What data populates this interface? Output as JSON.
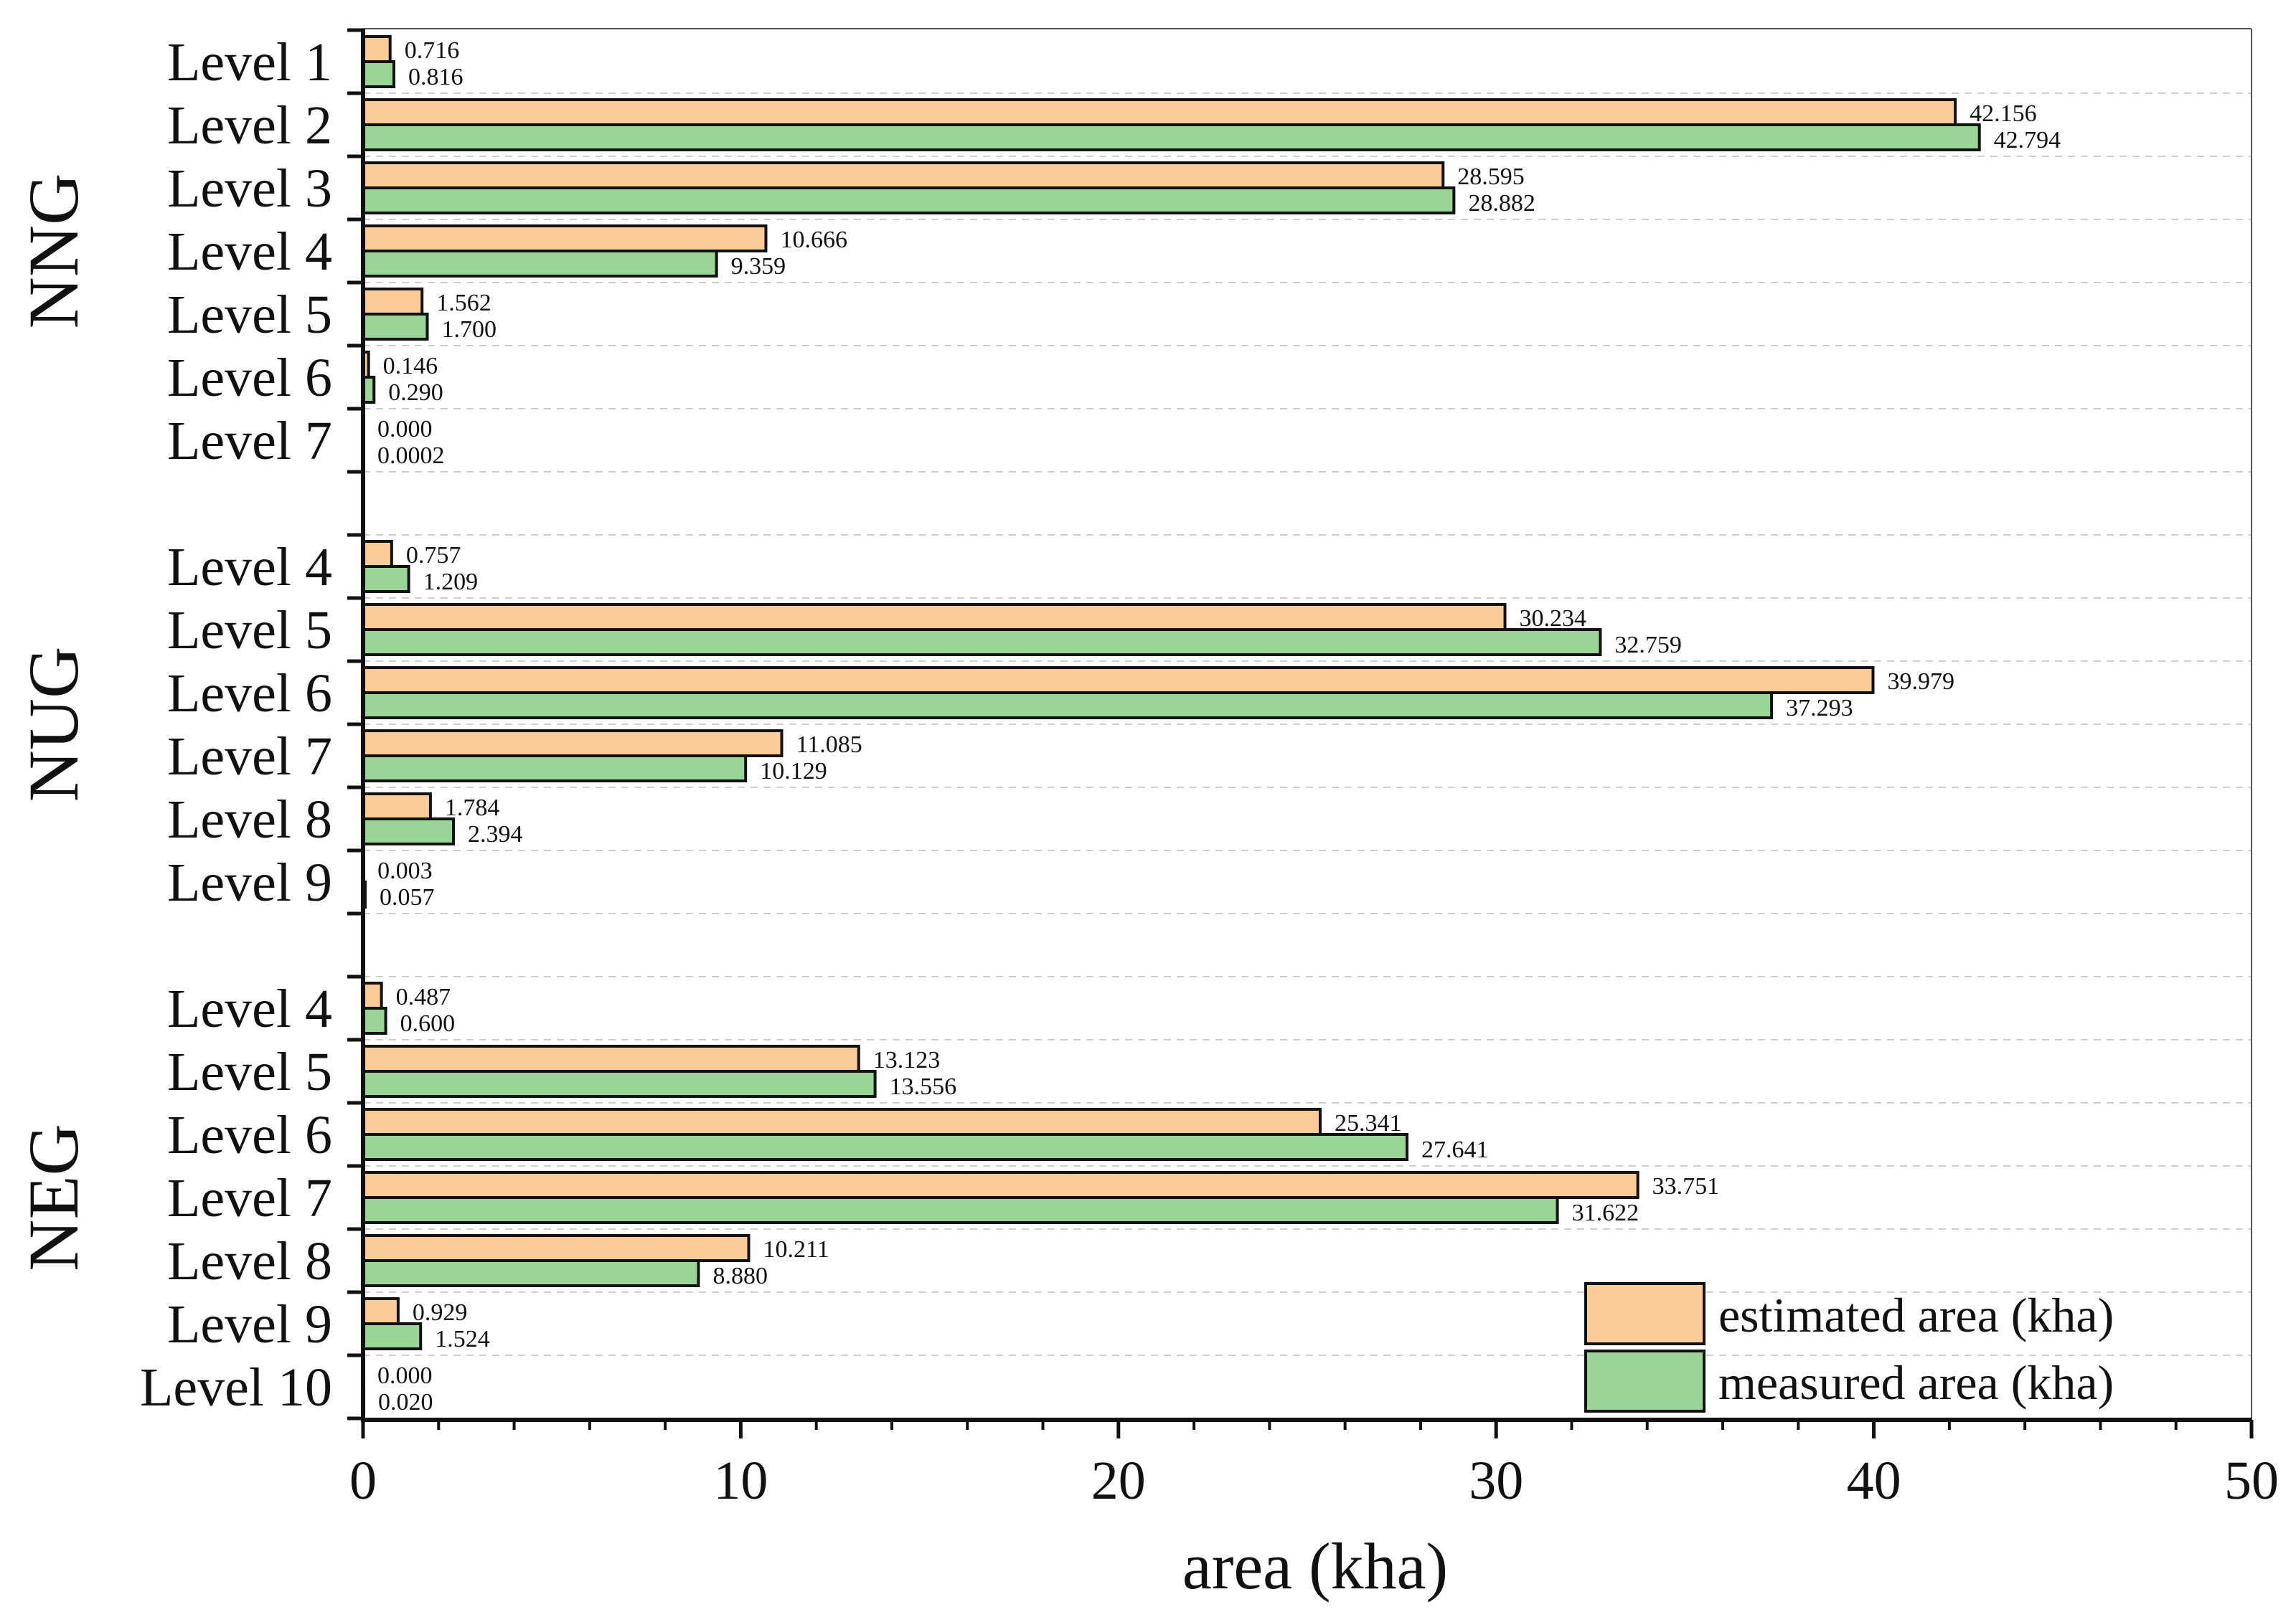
{
  "chart_data": {
    "type": "bar",
    "orientation": "horizontal",
    "xlabel": "area (kha)",
    "xlim": [
      0,
      50
    ],
    "xticks": [
      0,
      10,
      20,
      30,
      40,
      50
    ],
    "grid": "horizontal-dashed",
    "legend_position": "bottom-right",
    "series": [
      {
        "name": "estimated area (kha)",
        "color": "#FCCC98"
      },
      {
        "name": "measured area (kha)",
        "color": "#98D596"
      }
    ],
    "groups": [
      {
        "name": "NNG",
        "rows": [
          {
            "label": "Level 1",
            "estimated": 0.716,
            "estimated_text": "0.716",
            "measured": 0.816,
            "measured_text": "0.816"
          },
          {
            "label": "Level 2",
            "estimated": 42.156,
            "estimated_text": "42.156",
            "measured": 42.794,
            "measured_text": "42.794"
          },
          {
            "label": "Level 3",
            "estimated": 28.595,
            "estimated_text": "28.595",
            "measured": 28.882,
            "measured_text": "28.882"
          },
          {
            "label": "Level 4",
            "estimated": 10.666,
            "estimated_text": "10.666",
            "measured": 9.359,
            "measured_text": "9.359"
          },
          {
            "label": "Level 5",
            "estimated": 1.562,
            "estimated_text": "1.562",
            "measured": 1.7,
            "measured_text": "1.700"
          },
          {
            "label": "Level 6",
            "estimated": 0.146,
            "estimated_text": "0.146",
            "measured": 0.29,
            "measured_text": "0.290"
          },
          {
            "label": "Level 7",
            "estimated": 0.0,
            "estimated_text": "0.000",
            "measured": 0.0002,
            "measured_text": "0.0002"
          }
        ]
      },
      {
        "name": "NUG",
        "rows": [
          {
            "label": "Level 4",
            "estimated": 0.757,
            "estimated_text": "0.757",
            "measured": 1.209,
            "measured_text": "1.209"
          },
          {
            "label": "Level 5",
            "estimated": 30.234,
            "estimated_text": "30.234",
            "measured": 32.759,
            "measured_text": "32.759"
          },
          {
            "label": "Level 6",
            "estimated": 39.979,
            "estimated_text": "39.979",
            "measured": 37.293,
            "measured_text": "37.293"
          },
          {
            "label": "Level 7",
            "estimated": 11.085,
            "estimated_text": "11.085",
            "measured": 10.129,
            "measured_text": "10.129"
          },
          {
            "label": "Level 8",
            "estimated": 1.784,
            "estimated_text": "1.784",
            "measured": 2.394,
            "measured_text": "2.394"
          },
          {
            "label": "Level 9",
            "estimated": 0.003,
            "estimated_text": "0.003",
            "measured": 0.057,
            "measured_text": "0.057"
          }
        ]
      },
      {
        "name": "NEG",
        "rows": [
          {
            "label": "Level 4",
            "estimated": 0.487,
            "estimated_text": "0.487",
            "measured": 0.6,
            "measured_text": "0.600"
          },
          {
            "label": "Level 5",
            "estimated": 13.123,
            "estimated_text": "13.123",
            "measured": 13.556,
            "measured_text": "13.556"
          },
          {
            "label": "Level 6",
            "estimated": 25.341,
            "estimated_text": "25.341",
            "measured": 27.641,
            "measured_text": "27.641"
          },
          {
            "label": "Level 7",
            "estimated": 33.751,
            "estimated_text": "33.751",
            "measured": 31.622,
            "measured_text": "31.622"
          },
          {
            "label": "Level 8",
            "estimated": 10.211,
            "estimated_text": "10.211",
            "measured": 8.88,
            "measured_text": "8.880"
          },
          {
            "label": "Level 9",
            "estimated": 0.929,
            "estimated_text": "0.929",
            "measured": 1.524,
            "measured_text": "1.524"
          },
          {
            "label": "Level 10",
            "estimated": 0.0,
            "estimated_text": "0.000",
            "measured": 0.02,
            "measured_text": "0.020"
          }
        ]
      }
    ]
  }
}
